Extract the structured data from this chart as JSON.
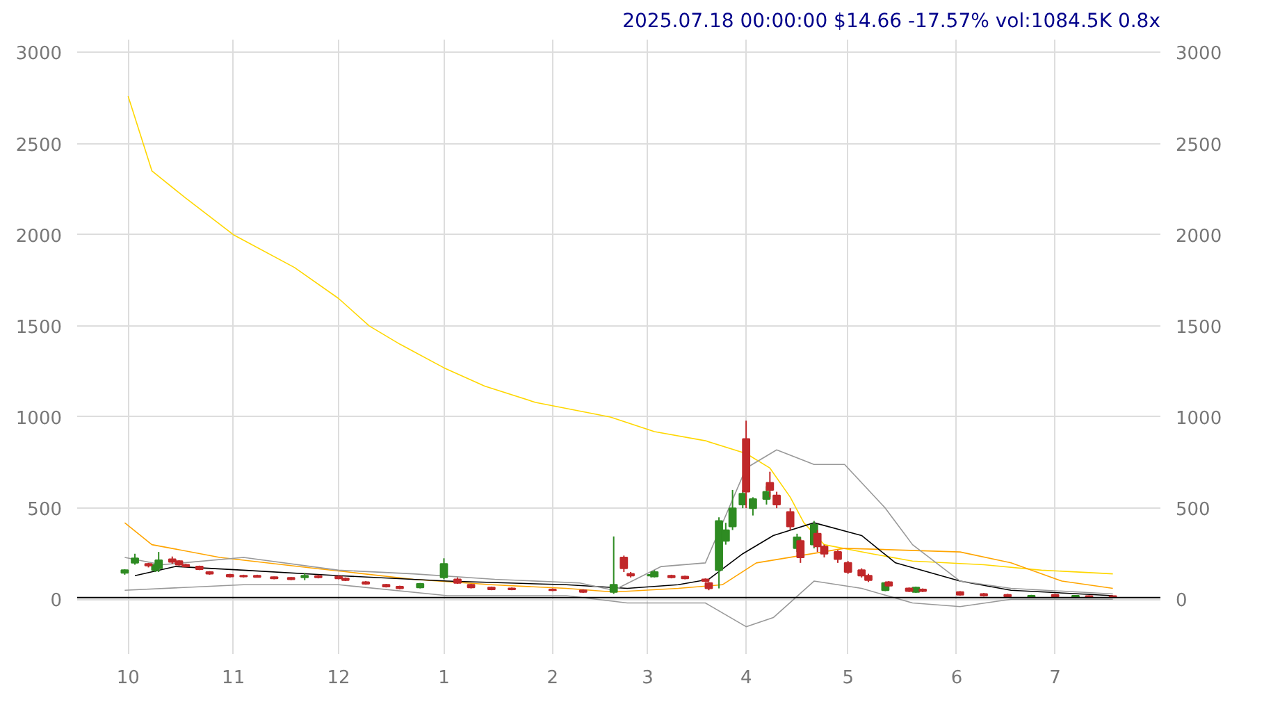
{
  "chart_data": {
    "type": "candlestick",
    "annotations": [
      "2025.07.18 00:00:00 $14.66 -17.57% vol:1084.5K 0.8x"
    ],
    "x": [
      "2024-09-30",
      "2024-10-03",
      "2024-10-07",
      "2024-10-09",
      "2024-10-10",
      "2024-10-14",
      "2024-10-16",
      "2024-10-18",
      "2024-10-22",
      "2024-10-25",
      "2024-10-31",
      "2024-11-04",
      "2024-11-08",
      "2024-11-13",
      "2024-11-18",
      "2024-11-22",
      "2024-11-26",
      "2024-12-02",
      "2024-12-04",
      "2024-12-10",
      "2024-12-16",
      "2024-12-20",
      "2024-12-26",
      "2025-01-02",
      "2025-01-06",
      "2025-01-10",
      "2025-01-16",
      "2025-01-22",
      "2025-02-03",
      "2025-02-12",
      "2025-02-21",
      "2025-02-24",
      "2025-02-26",
      "2025-03-04",
      "2025-03-05",
      "2025-03-10",
      "2025-03-14",
      "2025-03-20",
      "2025-03-21",
      "2025-03-24",
      "2025-03-26",
      "2025-03-28",
      "2025-03-31",
      "2025-04-01",
      "2025-04-03",
      "2025-04-07",
      "2025-04-08",
      "2025-04-10",
      "2025-04-14",
      "2025-04-16",
      "2025-04-17",
      "2025-04-21",
      "2025-04-22",
      "2025-04-24",
      "2025-04-28",
      "2025-05-01",
      "2025-05-05",
      "2025-05-07",
      "2025-05-12",
      "2025-05-13",
      "2025-05-19",
      "2025-05-21",
      "2025-05-23",
      "2025-06-03",
      "2025-06-10",
      "2025-06-17",
      "2025-06-24",
      "2025-07-01",
      "2025-07-07",
      "2025-07-11",
      "2025-07-18"
    ],
    "ohlc": [
      [
        145,
        165,
        135,
        160
      ],
      [
        200,
        250,
        190,
        225
      ],
      [
        195,
        200,
        175,
        185
      ],
      [
        160,
        195,
        150,
        190
      ],
      [
        170,
        260,
        150,
        215
      ],
      [
        220,
        235,
        195,
        205
      ],
      [
        210,
        215,
        185,
        190
      ],
      [
        190,
        195,
        175,
        180
      ],
      [
        180,
        185,
        160,
        165
      ],
      [
        150,
        155,
        135,
        140
      ],
      [
        135,
        140,
        120,
        125
      ],
      [
        130,
        135,
        120,
        125
      ],
      [
        130,
        135,
        120,
        122
      ],
      [
        122,
        125,
        110,
        115
      ],
      [
        118,
        122,
        105,
        110
      ],
      [
        120,
        145,
        105,
        130
      ],
      [
        128,
        135,
        115,
        120
      ],
      [
        125,
        130,
        110,
        115
      ],
      [
        115,
        120,
        100,
        105
      ],
      [
        95,
        100,
        80,
        85
      ],
      [
        80,
        85,
        65,
        70
      ],
      [
        70,
        75,
        55,
        60
      ],
      [
        65,
        90,
        60,
        85
      ],
      [
        120,
        225,
        110,
        195
      ],
      [
        110,
        120,
        85,
        90
      ],
      [
        80,
        85,
        60,
        65
      ],
      [
        65,
        70,
        50,
        55
      ],
      [
        60,
        65,
        50,
        55
      ],
      [
        55,
        60,
        45,
        50
      ],
      [
        50,
        55,
        35,
        40
      ],
      [
        40,
        345,
        30,
        80
      ],
      [
        230,
        240,
        150,
        170
      ],
      [
        140,
        150,
        120,
        130
      ],
      [
        130,
        145,
        120,
        135
      ],
      [
        125,
        160,
        120,
        150
      ],
      [
        130,
        135,
        115,
        120
      ],
      [
        125,
        130,
        110,
        115
      ],
      [
        110,
        115,
        95,
        100
      ],
      [
        90,
        95,
        50,
        60
      ],
      [
        160,
        450,
        60,
        430
      ],
      [
        320,
        420,
        300,
        380
      ],
      [
        400,
        600,
        380,
        500
      ],
      [
        520,
        600,
        500,
        580
      ],
      [
        880,
        980,
        500,
        590
      ],
      [
        500,
        560,
        460,
        550
      ],
      [
        550,
        620,
        520,
        590
      ],
      [
        640,
        700,
        560,
        600
      ],
      [
        570,
        590,
        500,
        520
      ],
      [
        480,
        500,
        380,
        400
      ],
      [
        280,
        360,
        260,
        340
      ],
      [
        320,
        330,
        200,
        230
      ],
      [
        300,
        430,
        280,
        410
      ],
      [
        360,
        380,
        260,
        290
      ],
      [
        290,
        300,
        230,
        250
      ],
      [
        260,
        270,
        200,
        220
      ],
      [
        200,
        210,
        140,
        150
      ],
      [
        160,
        170,
        120,
        130
      ],
      [
        130,
        140,
        95,
        105
      ],
      [
        50,
        95,
        45,
        90
      ],
      [
        95,
        100,
        70,
        75
      ],
      [
        60,
        65,
        40,
        45
      ],
      [
        40,
        70,
        35,
        65
      ],
      [
        55,
        60,
        40,
        45
      ],
      [
        40,
        45,
        20,
        25
      ],
      [
        30,
        35,
        15,
        20
      ],
      [
        25,
        30,
        10,
        15
      ],
      [
        15,
        25,
        10,
        20
      ],
      [
        25,
        30,
        10,
        15
      ],
      [
        15,
        22,
        8,
        20
      ],
      [
        18,
        22,
        10,
        12
      ],
      [
        18,
        20,
        10,
        15
      ]
    ],
    "series": [
      {
        "type": "line",
        "color": "#ffd700",
        "x": [
          "2024-10-01",
          "2024-10-08",
          "2024-10-18",
          "2024-11-01",
          "2024-11-19",
          "2024-12-02",
          "2024-12-11",
          "2024-12-20",
          "2025-01-02",
          "2025-01-14",
          "2025-01-29",
          "2025-02-20",
          "2025-03-05",
          "2025-03-20",
          "2025-04-01",
          "2025-04-08",
          "2025-04-14",
          "2025-04-18",
          "2025-04-24",
          "2025-05-08",
          "2025-05-20",
          "2025-06-10",
          "2025-06-27",
          "2025-07-18"
        ],
        "values": [
          2760,
          2350,
          2200,
          2000,
          1820,
          1650,
          1500,
          1400,
          1270,
          1170,
          1080,
          1000,
          920,
          870,
          800,
          720,
          560,
          420,
          300,
          250,
          210,
          190,
          160,
          140
        ]
      },
      {
        "type": "line",
        "color": "#ffa500",
        "x": [
          "2024-09-30",
          "2024-10-08",
          "2024-10-28",
          "2024-11-25",
          "2024-12-24",
          "2025-01-16",
          "2025-02-07",
          "2025-02-21",
          "2025-03-12",
          "2025-03-25",
          "2025-04-04",
          "2025-04-30",
          "2025-06-03",
          "2025-06-18",
          "2025-07-03",
          "2025-07-18"
        ],
        "values": [
          420,
          300,
          230,
          170,
          110,
          80,
          60,
          40,
          60,
          80,
          200,
          280,
          260,
          200,
          100,
          60
        ]
      },
      {
        "type": "line",
        "color": "#000000",
        "x": [
          "2024-10-03",
          "2024-10-15",
          "2024-11-04",
          "2024-12-02",
          "2025-01-03",
          "2025-02-07",
          "2025-02-25",
          "2025-03-12",
          "2025-03-21",
          "2025-03-31",
          "2025-04-09",
          "2025-04-21",
          "2025-05-05",
          "2025-05-15",
          "2025-06-03",
          "2025-06-18",
          "2025-07-18"
        ],
        "values": [
          130,
          180,
          160,
          130,
          100,
          80,
          60,
          80,
          110,
          250,
          350,
          420,
          350,
          200,
          100,
          50,
          20
        ]
      },
      {
        "type": "line",
        "color": "#999999",
        "x": [
          "2024-09-30",
          "2024-10-11",
          "2024-11-04",
          "2024-12-02",
          "2024-12-24",
          "2025-01-17",
          "2025-02-11",
          "2025-02-21",
          "2025-03-07",
          "2025-03-20",
          "2025-04-01",
          "2025-04-10",
          "2025-04-21",
          "2025-04-30",
          "2025-05-12",
          "2025-05-20",
          "2025-06-03",
          "2025-06-18",
          "2025-07-18"
        ],
        "values": [
          230,
          190,
          230,
          160,
          140,
          110,
          90,
          50,
          180,
          200,
          720,
          820,
          740,
          740,
          500,
          300,
          100,
          60,
          30
        ]
      },
      {
        "type": "line",
        "color": "#999999",
        "x": [
          "2024-09-30",
          "2024-11-04",
          "2024-12-02",
          "2025-01-03",
          "2025-02-07",
          "2025-02-25",
          "2025-03-20",
          "2025-04-01",
          "2025-04-09",
          "2025-04-21",
          "2025-05-05",
          "2025-05-20",
          "2025-06-03",
          "2025-06-18",
          "2025-07-18"
        ],
        "values": [
          50,
          80,
          80,
          20,
          20,
          -20,
          -20,
          -150,
          -100,
          100,
          60,
          -20,
          -40,
          0,
          0
        ]
      }
    ],
    "ref_lines": [
      {
        "axis": "y",
        "value": 10,
        "color": "#000000"
      }
    ],
    "xlim": [
      "2024-09-16",
      "2025-08-01"
    ],
    "xticks": [
      {
        "value": "2024-10-01",
        "label": "10"
      },
      {
        "value": "2024-11-01",
        "label": "11"
      },
      {
        "value": "2024-12-02",
        "label": "12"
      },
      {
        "value": "2025-01-02",
        "label": "1"
      },
      {
        "value": "2025-02-03",
        "label": "2"
      },
      {
        "value": "2025-03-03",
        "label": "3"
      },
      {
        "value": "2025-04-01",
        "label": "4"
      },
      {
        "value": "2025-05-01",
        "label": "5"
      },
      {
        "value": "2025-06-02",
        "label": "6"
      },
      {
        "value": "2025-07-01",
        "label": "7"
      }
    ],
    "ylim": [
      -300,
      3070
    ],
    "yticks": [
      0,
      500,
      1000,
      1500,
      2000,
      2500,
      3000
    ],
    "y2lim": [
      -300,
      3070
    ],
    "y2ticks": [
      0,
      500,
      1000,
      1500,
      2000,
      2500,
      3000
    ],
    "grid": true
  }
}
